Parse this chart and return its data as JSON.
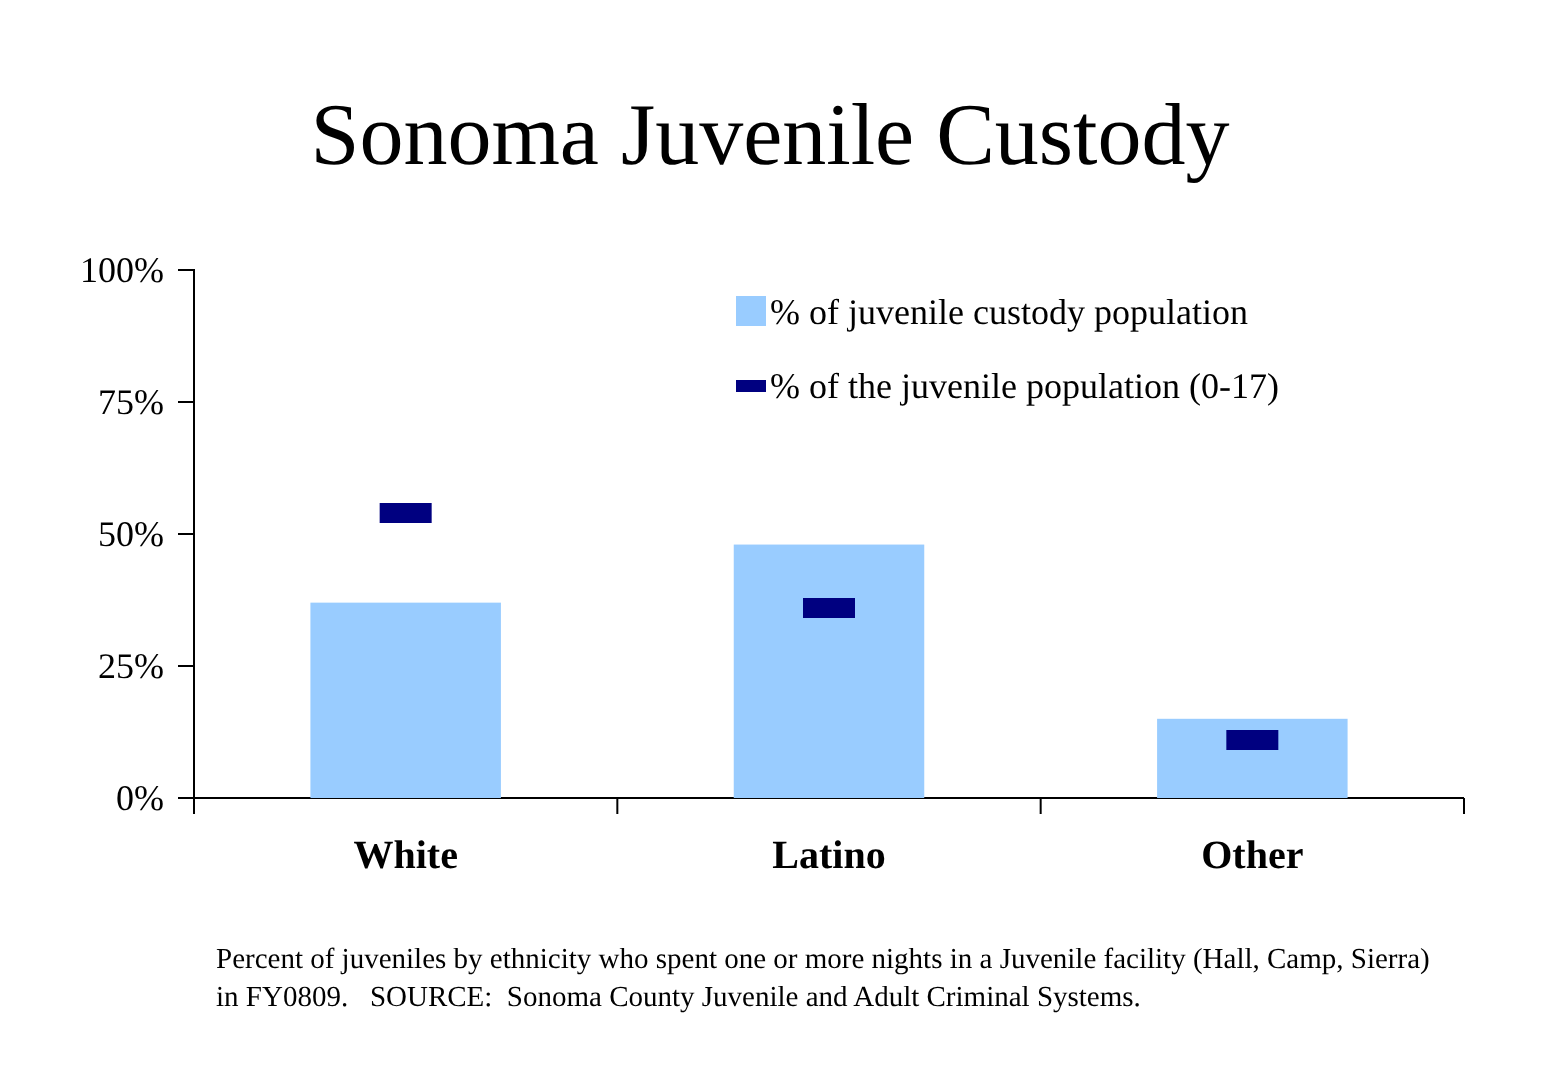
{
  "chart_data": {
    "type": "bar",
    "title": "Sonoma Juvenile Custody",
    "categories": [
      "White",
      "Latino",
      "Other"
    ],
    "series": [
      {
        "name": "% of juvenile custody population",
        "color": "#99ccff",
        "values": [
          37,
          48,
          15
        ]
      },
      {
        "name": "% of the juvenile population (0-17)",
        "type": "scatter",
        "color": "#000080",
        "values": [
          54,
          36,
          11
        ]
      }
    ],
    "ylim": [
      0,
      100
    ],
    "yticks": [
      {
        "value": 0,
        "label": "0%"
      },
      {
        "value": 25,
        "label": "25%"
      },
      {
        "value": 50,
        "label": "50%"
      },
      {
        "value": 75,
        "label": "75%"
      },
      {
        "value": 100,
        "label": "100%"
      }
    ],
    "legend": "top right",
    "annotations": [
      "Percent of juveniles by ethnicity who spent one or more nights in a Juvenile facility (Hall, Camp, Sierra) in FY0809.   SOURCE:  Sonoma County Juvenile and Adult Criminal Systems."
    ]
  }
}
